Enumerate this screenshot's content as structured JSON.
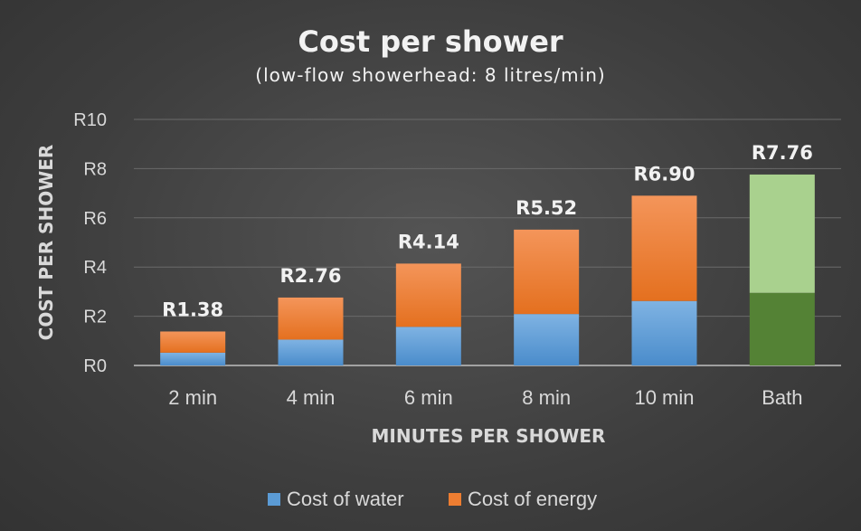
{
  "chart_data": {
    "type": "bar",
    "stacked": true,
    "title": "Cost per shower",
    "subtitle": "(low-flow showerhead: 8 litres/min)",
    "xlabel": "MINUTES PER SHOWER",
    "ylabel": "COST PER SHOWER",
    "ylim": [
      0,
      10
    ],
    "yticks": [
      0,
      2,
      4,
      6,
      8,
      10
    ],
    "ytick_labels": [
      "R0",
      "R2",
      "R4",
      "R6",
      "R8",
      "R10"
    ],
    "grid": true,
    "legend_position": "bottom",
    "categories": [
      "2 min",
      "4 min",
      "6 min",
      "8 min",
      "10 min",
      "Bath"
    ],
    "series": [
      {
        "name": "Cost of water",
        "values": [
          0.52,
          1.05,
          1.57,
          2.09,
          2.62,
          2.95
        ],
        "color": "#5b9bd5",
        "point_colors": [
          "#5b9bd5",
          "#5b9bd5",
          "#5b9bd5",
          "#5b9bd5",
          "#5b9bd5",
          "#548235"
        ]
      },
      {
        "name": "Cost of energy",
        "values": [
          0.86,
          1.71,
          2.57,
          3.43,
          4.28,
          4.81
        ],
        "color": "#ed7d31",
        "point_colors": [
          "#ed7d31",
          "#ed7d31",
          "#ed7d31",
          "#ed7d31",
          "#ed7d31",
          "#a9d18e"
        ]
      }
    ],
    "totals": [
      1.38,
      2.76,
      4.14,
      5.52,
      6.9,
      7.76
    ],
    "total_labels": [
      "R1.38",
      "R2.76",
      "R4.14",
      "R5.52",
      "R6.90",
      "R7.76"
    ]
  }
}
